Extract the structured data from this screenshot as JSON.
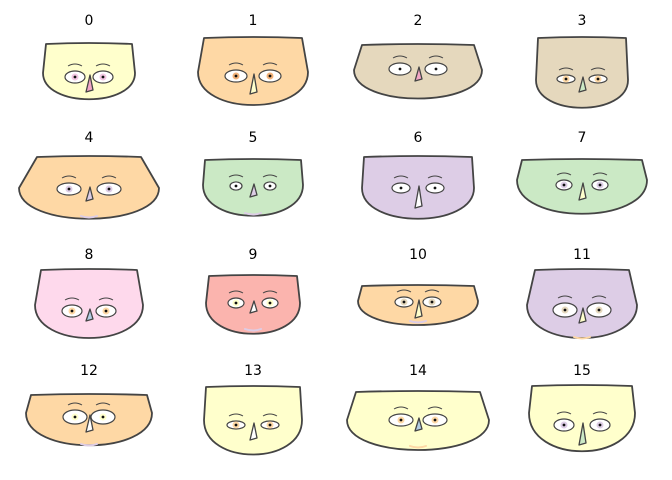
{
  "figure": {
    "background": "#ffffff",
    "stroke": "#444444"
  },
  "faces": [
    {
      "label": "0",
      "color": "#ffffcc",
      "eyes": [
        {
          "iris": "#f2c6e2",
          "pupil": "#222222"
        }
      ],
      "nose": "#f2a6c6",
      "mouth": "#ffffff"
    },
    {
      "label": "1",
      "color": "#fed8a5",
      "eyes": [
        {
          "iris": "#f2b27a"
        }
      ],
      "nose": "#ffffcc",
      "mouth": "#ffffff"
    },
    {
      "label": "2",
      "color": "#e5d8bd",
      "eyes": [
        {
          "iris": "#ffffff"
        }
      ],
      "nose": "#f2a6c6",
      "mouth": "#ffffff"
    },
    {
      "label": "3",
      "color": "#e5d8bd",
      "eyes": [
        {
          "iris": "#fed8a5"
        }
      ],
      "nose": "#cbe9c5",
      "mouth": "#ffffff"
    },
    {
      "label": "4",
      "color": "#fed8a5",
      "eyes": [
        {
          "iris": "#ddcde6"
        }
      ],
      "nose": "#ddcde6",
      "mouth": "#ddcde6"
    },
    {
      "label": "5",
      "color": "#cbe9c5",
      "eyes": [
        {
          "iris": "#ffffff"
        }
      ],
      "nose": "#ddcde6",
      "mouth": "#ddcde6"
    },
    {
      "label": "6",
      "color": "#ddcde6",
      "eyes": [
        {
          "iris": "#ffffff"
        }
      ],
      "nose": "#ffffff",
      "mouth": "#ffffff"
    },
    {
      "label": "7",
      "color": "#cbe9c5",
      "eyes": [
        {
          "iris": "#ddcde6"
        }
      ],
      "nose": "#ffffcc",
      "mouth": "#ffffff"
    },
    {
      "label": "8",
      "color": "#fed9ec",
      "eyes": [
        {
          "iris": "#fed8a5"
        }
      ],
      "nose": "#b3cde3",
      "mouth": "#ffffff"
    },
    {
      "label": "9",
      "color": "#fbb4ae",
      "eyes": [
        {
          "iris": "#ffffcc"
        }
      ],
      "nose": "#ffffff",
      "mouth": "#ddcde6"
    },
    {
      "label": "10",
      "color": "#fed8a5",
      "eyes": [
        {
          "iris": "#e5d8bd"
        }
      ],
      "nose": "#ffffcc",
      "mouth": "#ddcde6"
    },
    {
      "label": "11",
      "color": "#ddcde6",
      "eyes": [
        {
          "iris": "#e5d8bd"
        }
      ],
      "nose": "#ffffcc",
      "mouth": "#fed8a5"
    },
    {
      "label": "12",
      "color": "#fed8a5",
      "eyes": [
        {
          "iris": "#ffffcc"
        }
      ],
      "nose": "#ffffff",
      "mouth": "#ddcde6"
    },
    {
      "label": "13",
      "color": "#ffffcc",
      "eyes": [
        {
          "iris": "#fed8a5"
        }
      ],
      "nose": "#ffffff",
      "mouth": "#ffffff"
    },
    {
      "label": "14",
      "color": "#ffffcc",
      "eyes": [
        {
          "iris": "#fed8a5"
        }
      ],
      "nose": "#b3cde3",
      "mouth": "#fed8a5"
    },
    {
      "label": "15",
      "color": "#ffffcc",
      "eyes": [
        {
          "iris": "#ddcde6"
        }
      ],
      "nose": "#cbe9c5",
      "mouth": "#ffffff"
    }
  ]
}
